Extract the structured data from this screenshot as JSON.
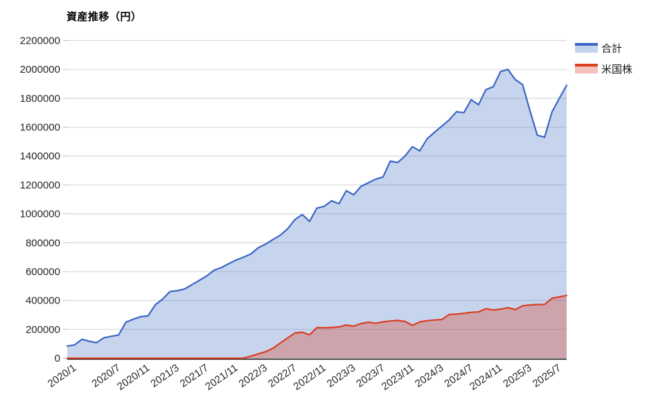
{
  "chart_data": {
    "type": "area",
    "title": "資産推移（円）",
    "xlabel": "",
    "ylabel": "",
    "ylim": [
      0,
      2200000
    ],
    "ytick_step": 200000,
    "grid": true,
    "legend_position": "top-right",
    "x": [
      "2020/1",
      "2020/2",
      "2020/3",
      "2020/4",
      "2020/5",
      "2020/6",
      "2020/7",
      "2020/8",
      "2020/9",
      "2020/10",
      "2020/11",
      "2020/12",
      "2021/1",
      "2021/2",
      "2021/3",
      "2021/4",
      "2021/5",
      "2021/6",
      "2021/7",
      "2021/8",
      "2021/9",
      "2021/10",
      "2021/11",
      "2021/12",
      "2022/1",
      "2022/2",
      "2022/3",
      "2022/4",
      "2022/5",
      "2022/6",
      "2022/7",
      "2022/8",
      "2022/9",
      "2022/10",
      "2022/11",
      "2022/12",
      "2023/1",
      "2023/2",
      "2023/3",
      "2023/4",
      "2023/5",
      "2023/6",
      "2023/7",
      "2023/8",
      "2023/9",
      "2023/10",
      "2023/11",
      "2023/12",
      "2024/1",
      "2024/2",
      "2024/3",
      "2024/4",
      "2024/5",
      "2024/6",
      "2024/7",
      "2024/8",
      "2024/9",
      "2024/10",
      "2024/11",
      "2024/12",
      "2025/1",
      "2025/2",
      "2025/3",
      "2025/4",
      "2025/5",
      "2025/6",
      "2025/7",
      "2025/8",
      "2025/9"
    ],
    "xtick_indices": [
      0,
      6,
      10,
      14,
      18,
      22,
      26,
      30,
      34,
      38,
      42,
      46,
      50,
      54,
      58,
      62,
      66
    ],
    "xtick_labels": [
      "2020/1",
      "2020/7",
      "2020/11",
      "2021/3",
      "2021/7",
      "2021/11",
      "2022/3",
      "2022/7",
      "2022/11",
      "2023/3",
      "2023/7",
      "2023/11",
      "2024/3",
      "2024/7",
      "2024/11",
      "2025/3",
      "2025/7"
    ],
    "ytick_labels": [
      "0",
      "200000",
      "400000",
      "600000",
      "800000",
      "1000000",
      "1200000",
      "1400000",
      "1600000",
      "1800000",
      "2000000",
      "2200000"
    ],
    "series": [
      {
        "key": "total",
        "name": "合計",
        "line_color": "#3b66c4",
        "fill_color": "rgba(68,114,196,0.30)",
        "legend_fill": "#c5d4ee",
        "values": [
          85000,
          92000,
          131000,
          118000,
          108000,
          142000,
          152000,
          161000,
          250000,
          270000,
          288000,
          293000,
          370000,
          410000,
          462000,
          468000,
          480000,
          510000,
          540000,
          570000,
          610000,
          628000,
          655000,
          680000,
          700000,
          722000,
          765000,
          790000,
          822000,
          851000,
          896000,
          960000,
          995000,
          948000,
          1040000,
          1052000,
          1090000,
          1070000,
          1160000,
          1132000,
          1190000,
          1215000,
          1240000,
          1255000,
          1365000,
          1355000,
          1400000,
          1465000,
          1436000,
          1519000,
          1564000,
          1607000,
          1650000,
          1707000,
          1700000,
          1790000,
          1755000,
          1860000,
          1880000,
          1985000,
          2000000,
          1930000,
          1895000,
          1715000,
          1545000,
          1530000,
          1705000,
          1800000,
          1890000
        ]
      },
      {
        "key": "us-stocks",
        "name": "米国株",
        "line_color": "#d93e20",
        "fill_color": "rgba(217,62,32,0.32)",
        "legend_fill": "#f2c3ba",
        "values": [
          0,
          0,
          0,
          0,
          0,
          0,
          0,
          0,
          0,
          0,
          0,
          0,
          0,
          0,
          0,
          0,
          0,
          0,
          0,
          0,
          0,
          0,
          0,
          0,
          0,
          15000,
          30000,
          45000,
          68000,
          105000,
          140000,
          175000,
          180000,
          162000,
          212000,
          211000,
          213000,
          217000,
          230000,
          222000,
          240000,
          250000,
          242000,
          252000,
          258000,
          262000,
          255000,
          228000,
          252000,
          260000,
          265000,
          268000,
          303000,
          305000,
          311000,
          318000,
          321000,
          343000,
          334000,
          340000,
          350000,
          337000,
          363000,
          369000,
          372000,
          373000,
          415000,
          425000,
          435000
        ]
      }
    ],
    "colors": {
      "gridline": "#d9d9d9",
      "axis_line": "#1a1a1a",
      "tick_mark": "#bfbfbf",
      "label_text": "#262626"
    }
  }
}
